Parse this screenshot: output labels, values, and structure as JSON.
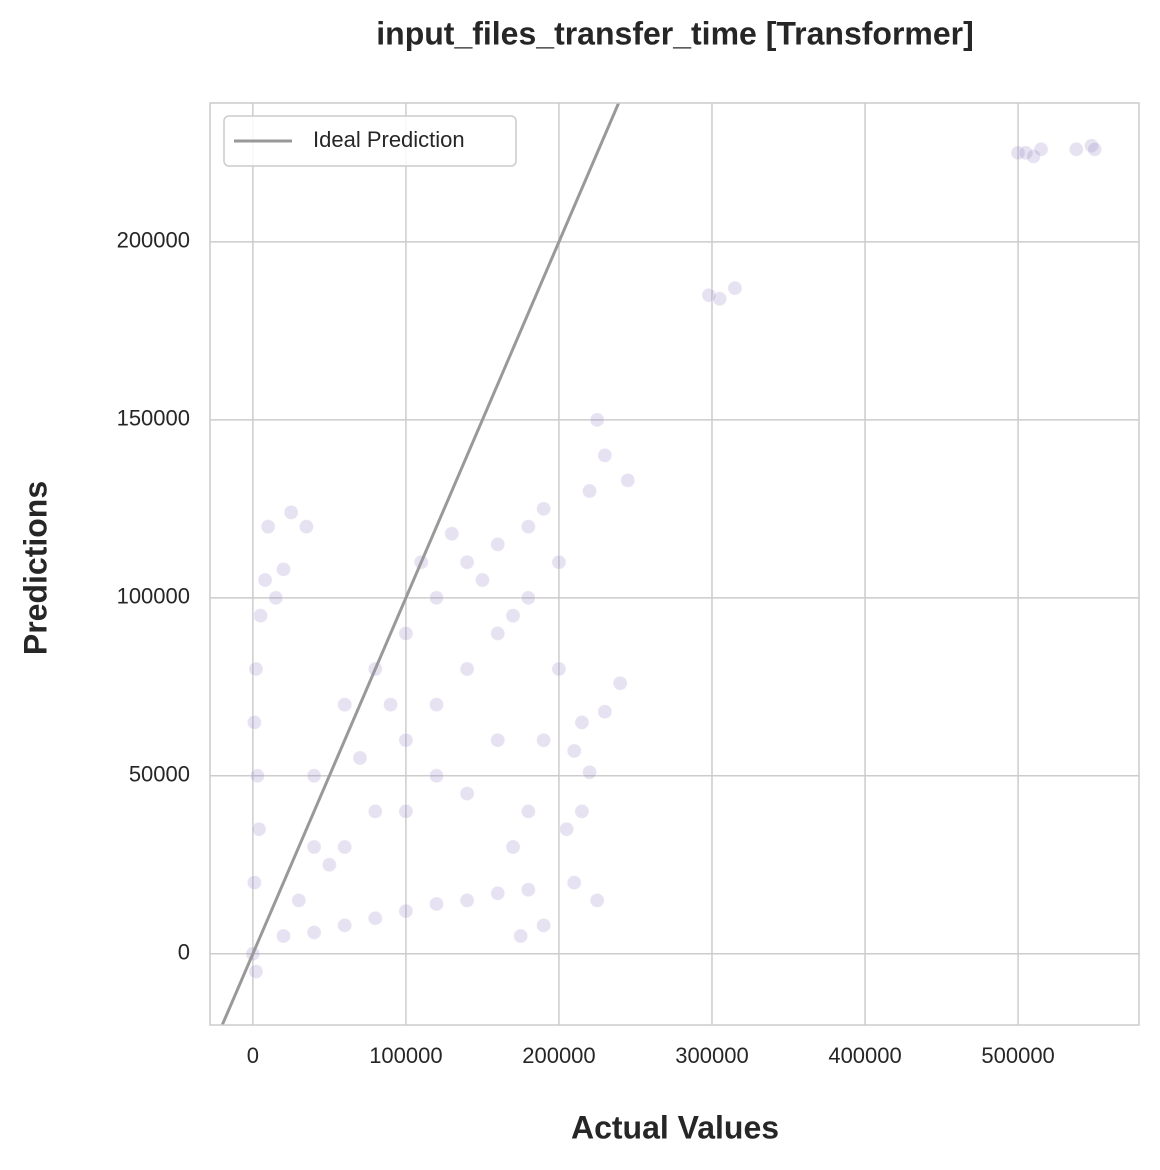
{
  "chart_data": {
    "type": "scatter",
    "title": "input_files_transfer_time [Transformer]",
    "x_label": "Actual Values",
    "y_label": "Predictions",
    "xlim": [
      -28000,
      579000
    ],
    "ylim": [
      -20000,
      239000
    ],
    "xticks": [
      0,
      100000,
      200000,
      300000,
      400000,
      500000
    ],
    "yticks": [
      0,
      50000,
      100000,
      150000,
      200000
    ],
    "grid": true,
    "legend": "upper left",
    "points": {
      "color": "#8d7cc0",
      "x": [
        0,
        2000,
        1000,
        3000,
        2000,
        5000,
        1000,
        4000,
        8000,
        15000,
        20000,
        20000,
        40000,
        60000,
        80000,
        100000,
        120000,
        140000,
        160000,
        180000,
        30000,
        50000,
        40000,
        60000,
        80000,
        100000,
        120000,
        140000,
        160000,
        180000,
        190000,
        100000,
        120000,
        140000,
        160000,
        180000,
        80000,
        100000,
        120000,
        140000,
        160000,
        60000,
        40000,
        70000,
        90000,
        110000,
        130000,
        150000,
        170000,
        200000,
        200000,
        190000,
        180000,
        170000,
        220000,
        230000,
        240000,
        230000,
        220000,
        210000,
        215000,
        210000,
        225000,
        190000,
        175000,
        25000,
        10000,
        35000,
        225000,
        245000,
        205000,
        215000,
        298000,
        305000,
        315000,
        500000,
        505000,
        510000,
        515000,
        538000,
        548000,
        550000
      ],
      "y": [
        0,
        -5000,
        20000,
        50000,
        80000,
        95000,
        65000,
        35000,
        105000,
        100000,
        108000,
        5000,
        6000,
        8000,
        10000,
        12000,
        14000,
        15000,
        17000,
        18000,
        15000,
        25000,
        50000,
        70000,
        80000,
        90000,
        100000,
        110000,
        115000,
        120000,
        125000,
        60000,
        70000,
        80000,
        90000,
        100000,
        40000,
        40000,
        50000,
        45000,
        60000,
        30000,
        30000,
        55000,
        70000,
        110000,
        118000,
        105000,
        95000,
        110000,
        80000,
        60000,
        40000,
        30000,
        130000,
        140000,
        76000,
        68000,
        51000,
        57000,
        40000,
        20000,
        15000,
        8000,
        5000,
        124000,
        120000,
        120000,
        150000,
        133000,
        35000,
        65000,
        185000,
        184000,
        187000,
        225000,
        225000,
        224000,
        226000,
        226000,
        227000,
        226000
      ]
    },
    "series": [
      {
        "name": "Ideal Prediction",
        "color": "#999999",
        "style": "line",
        "x": [
          -20000,
          239000
        ],
        "values": [
          -20000,
          239000
        ]
      }
    ]
  }
}
